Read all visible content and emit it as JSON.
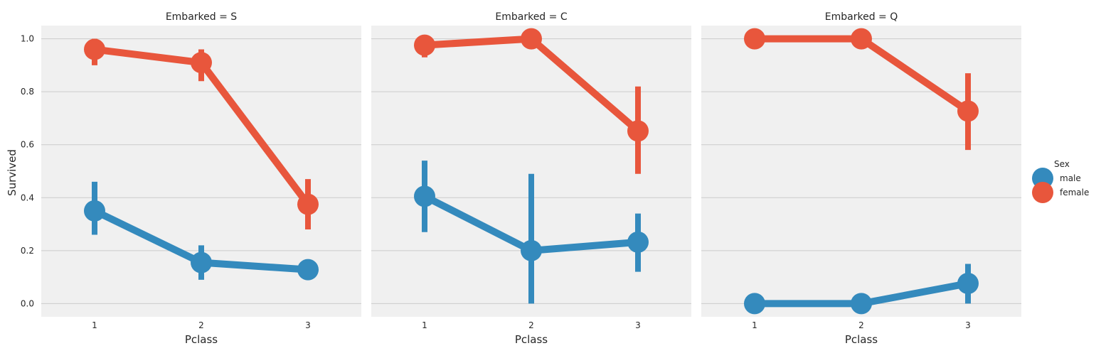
{
  "chart_data": {
    "type": "line",
    "subtype": "pointplot-faceted",
    "ylabel": "Survived",
    "xlabel": "Pclass",
    "ylim": [
      -0.05,
      1.05
    ],
    "yticks": [
      "0.0",
      "0.2",
      "0.4",
      "0.6",
      "0.8",
      "1.0"
    ],
    "categories": [
      "1",
      "2",
      "3"
    ],
    "grid": true,
    "legend": {
      "title": "Sex",
      "placement": "right",
      "entries": [
        {
          "name": "male",
          "color": "#348ABD"
        },
        {
          "name": "female",
          "color": "#E8563C"
        }
      ]
    },
    "facets": [
      {
        "title": "Embarked = S",
        "series": [
          {
            "name": "male",
            "color": "#348ABD",
            "values": [
              0.35,
              0.155,
              0.128
            ],
            "ci_low": [
              0.26,
              0.09,
              0.1
            ],
            "ci_high": [
              0.46,
              0.22,
              0.15
            ]
          },
          {
            "name": "female",
            "color": "#E8563C",
            "values": [
              0.96,
              0.91,
              0.375
            ],
            "ci_low": [
              0.9,
              0.84,
              0.28
            ],
            "ci_high": [
              1.0,
              0.96,
              0.47
            ]
          }
        ]
      },
      {
        "title": "Embarked = C",
        "series": [
          {
            "name": "male",
            "color": "#348ABD",
            "values": [
              0.405,
              0.2,
              0.232
            ],
            "ci_low": [
              0.27,
              0.0,
              0.12
            ],
            "ci_high": [
              0.54,
              0.49,
              0.34
            ]
          },
          {
            "name": "female",
            "color": "#E8563C",
            "values": [
              0.976,
              1.0,
              0.652
            ],
            "ci_low": [
              0.93,
              1.0,
              0.49
            ],
            "ci_high": [
              1.0,
              1.0,
              0.82
            ]
          }
        ]
      },
      {
        "title": "Embarked = Q",
        "series": [
          {
            "name": "male",
            "color": "#348ABD",
            "values": [
              0.0,
              0.0,
              0.076
            ],
            "ci_low": [
              0.0,
              0.0,
              0.0
            ],
            "ci_high": [
              0.0,
              0.0,
              0.15
            ]
          },
          {
            "name": "female",
            "color": "#E8563C",
            "values": [
              1.0,
              1.0,
              0.727
            ],
            "ci_low": [
              1.0,
              1.0,
              0.58
            ],
            "ci_high": [
              1.0,
              1.0,
              0.87
            ]
          }
        ]
      }
    ]
  },
  "colors": {
    "panel_background": "#F0F0F0",
    "grid": "#CBCBCB",
    "male": "#348ABD",
    "female": "#E8563C"
  }
}
